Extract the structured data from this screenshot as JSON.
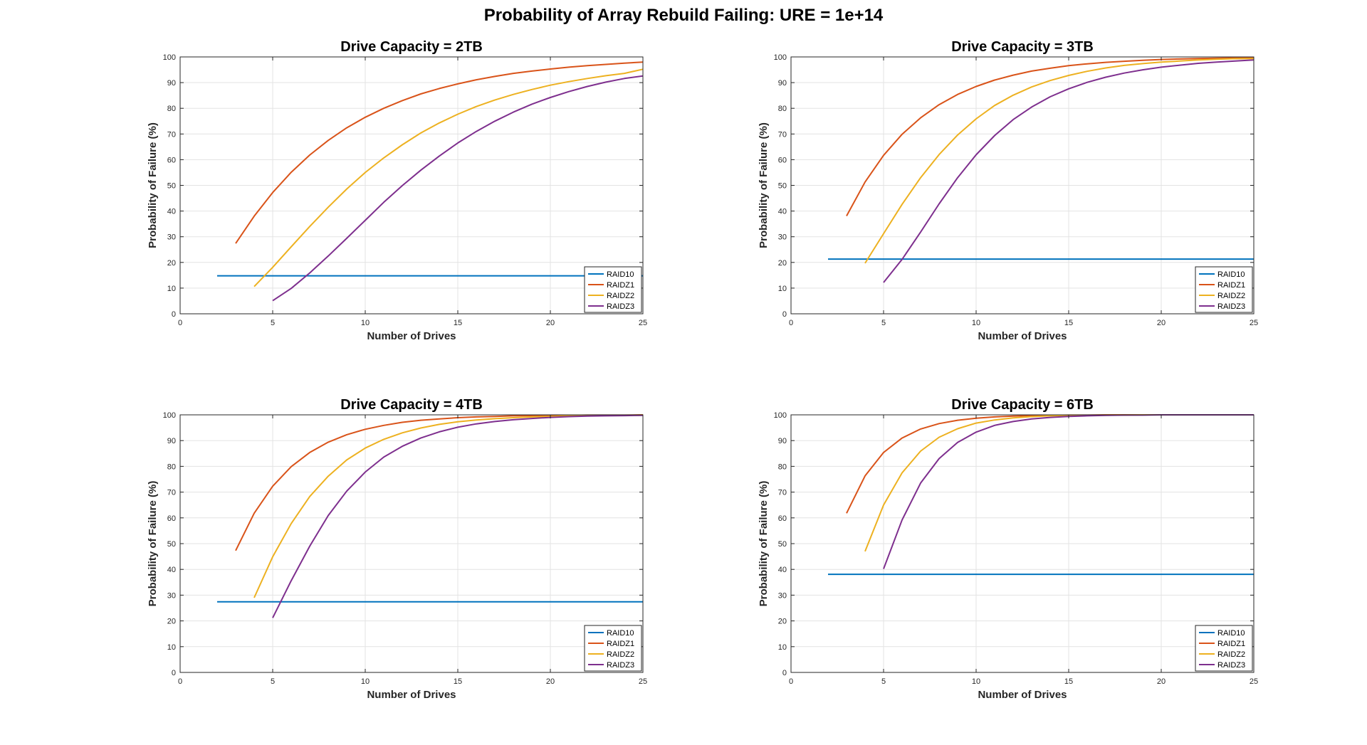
{
  "figure": {
    "title": "Probability of Array Rebuild Failing: URE = 1e+14"
  },
  "colors": {
    "RAID10": "#0072BD",
    "RAIDZ1": "#D95319",
    "RAIDZ2": "#EDB120",
    "RAIDZ3": "#7E2F8E",
    "grid": "#e3e3e3",
    "axis": "#262626"
  },
  "chart_data": [
    {
      "type": "line",
      "title": "Drive Capacity = 2TB",
      "xlabel": "Number of Drives",
      "ylabel": "Probability of Failure (%)",
      "xlim": [
        0,
        25
      ],
      "ylim": [
        0,
        100
      ],
      "xticks": [
        "0",
        "5",
        "10",
        "15",
        "20",
        "25"
      ],
      "yticks": [
        "0",
        "10",
        "20",
        "30",
        "40",
        "50",
        "60",
        "70",
        "80",
        "90",
        "100"
      ],
      "grid": true,
      "legend_position": "bottom-right",
      "series": [
        {
          "name": "RAID10",
          "x": [
            2,
            25
          ],
          "y": [
            14.8,
            14.8
          ]
        },
        {
          "name": "RAIDZ1",
          "x": [
            3,
            4,
            5,
            6,
            7,
            8,
            9,
            10,
            11,
            12,
            13,
            14,
            15,
            16,
            17,
            18,
            19,
            20,
            21,
            22,
            23,
            24,
            25
          ],
          "y": [
            27.4,
            38.0,
            47.2,
            55.1,
            61.8,
            67.5,
            72.4,
            76.5,
            80.0,
            83.0,
            85.6,
            87.7,
            89.5,
            91.1,
            92.4,
            93.6,
            94.5,
            95.3,
            96.0,
            96.6,
            97.1,
            97.6,
            98.0
          ]
        },
        {
          "name": "RAIDZ2",
          "x": [
            4,
            5,
            6,
            7,
            8,
            9,
            10,
            11,
            12,
            13,
            14,
            15,
            16,
            17,
            18,
            19,
            20,
            21,
            22,
            23,
            24,
            25
          ],
          "y": [
            10.6,
            18.1,
            26.1,
            34.0,
            41.5,
            48.6,
            55.0,
            60.7,
            65.8,
            70.4,
            74.3,
            77.7,
            80.7,
            83.2,
            85.4,
            87.3,
            89.0,
            90.4,
            91.6,
            92.7,
            93.6,
            95.2
          ]
        },
        {
          "name": "RAIDZ3",
          "x": [
            5,
            6,
            7,
            8,
            9,
            10,
            11,
            12,
            13,
            14,
            15,
            16,
            17,
            18,
            19,
            20,
            21,
            22,
            23,
            24,
            25
          ],
          "y": [
            5.1,
            9.9,
            15.9,
            22.5,
            29.4,
            36.4,
            43.4,
            49.9,
            55.9,
            61.4,
            66.5,
            71.0,
            75.0,
            78.5,
            81.6,
            84.2,
            86.5,
            88.5,
            90.2,
            91.6,
            92.6
          ]
        }
      ]
    },
    {
      "type": "line",
      "title": "Drive Capacity = 3TB",
      "xlabel": "Number of Drives",
      "ylabel": "Probability of Failure (%)",
      "xlim": [
        0,
        25
      ],
      "ylim": [
        0,
        100
      ],
      "xticks": [
        "0",
        "5",
        "10",
        "15",
        "20",
        "25"
      ],
      "yticks": [
        "0",
        "10",
        "20",
        "30",
        "40",
        "50",
        "60",
        "70",
        "80",
        "90",
        "100"
      ],
      "grid": true,
      "legend_position": "bottom-right",
      "series": [
        {
          "name": "RAID10",
          "x": [
            2,
            25
          ],
          "y": [
            21.3,
            21.3
          ]
        },
        {
          "name": "RAIDZ1",
          "x": [
            3,
            4,
            5,
            6,
            7,
            8,
            9,
            10,
            11,
            12,
            13,
            14,
            15,
            16,
            17,
            18,
            19,
            20,
            21,
            22,
            23,
            24,
            25
          ],
          "y": [
            38.1,
            51.3,
            61.7,
            69.9,
            76.3,
            81.4,
            85.4,
            88.5,
            91.0,
            92.9,
            94.5,
            95.6,
            96.6,
            97.3,
            97.9,
            98.3,
            98.7,
            99.0,
            99.2,
            99.4,
            99.5,
            99.6,
            99.7
          ]
        },
        {
          "name": "RAIDZ2",
          "x": [
            4,
            5,
            6,
            7,
            8,
            9,
            10,
            11,
            12,
            13,
            14,
            15,
            16,
            17,
            18,
            19,
            20,
            21,
            22,
            23,
            24,
            25
          ],
          "y": [
            19.7,
            31.2,
            42.6,
            53.0,
            62.0,
            69.6,
            75.9,
            81.1,
            85.1,
            88.3,
            90.8,
            92.8,
            94.4,
            95.7,
            96.7,
            97.4,
            98.0,
            98.4,
            98.8,
            99.1,
            99.3,
            99.4
          ]
        },
        {
          "name": "RAIDZ3",
          "x": [
            5,
            6,
            7,
            8,
            9,
            10,
            11,
            12,
            13,
            14,
            15,
            16,
            17,
            18,
            19,
            20,
            21,
            22,
            23,
            24,
            25
          ],
          "y": [
            12.2,
            21.2,
            31.8,
            42.8,
            53.0,
            61.9,
            69.4,
            75.6,
            80.5,
            84.5,
            87.6,
            90.1,
            92.1,
            93.7,
            95.0,
            96.0,
            96.8,
            97.5,
            98.0,
            98.4,
            98.8
          ]
        }
      ]
    },
    {
      "type": "line",
      "title": "Drive Capacity = 4TB",
      "xlabel": "Number of Drives",
      "ylabel": "Probability of Failure (%)",
      "xlim": [
        0,
        25
      ],
      "ylim": [
        0,
        100
      ],
      "xticks": [
        "0",
        "5",
        "10",
        "15",
        "20",
        "25"
      ],
      "yticks": [
        "0",
        "10",
        "20",
        "30",
        "40",
        "50",
        "60",
        "70",
        "80",
        "90",
        "100"
      ],
      "grid": true,
      "legend_position": "bottom-right",
      "series": [
        {
          "name": "RAID10",
          "x": [
            2,
            25
          ],
          "y": [
            27.4,
            27.4
          ]
        },
        {
          "name": "RAIDZ1",
          "x": [
            3,
            4,
            5,
            6,
            7,
            8,
            9,
            10,
            11,
            12,
            13,
            14,
            15,
            16,
            17,
            18,
            19,
            20,
            21,
            22,
            23,
            24,
            25
          ],
          "y": [
            47.3,
            61.8,
            72.3,
            79.9,
            85.4,
            89.4,
            92.3,
            94.4,
            95.9,
            97.1,
            97.9,
            98.4,
            98.9,
            99.2,
            99.4,
            99.6,
            99.7,
            99.8,
            99.8,
            99.9,
            99.9,
            99.9,
            100.0
          ]
        },
        {
          "name": "RAIDZ2",
          "x": [
            4,
            5,
            6,
            7,
            8,
            9,
            10,
            11,
            12,
            13,
            14,
            15,
            16,
            17,
            18,
            19,
            20,
            21,
            22,
            23,
            24,
            25
          ],
          "y": [
            29.0,
            44.9,
            57.8,
            68.3,
            76.2,
            82.5,
            87.1,
            90.5,
            93.0,
            94.9,
            96.3,
            97.3,
            98.0,
            98.5,
            98.9,
            99.2,
            99.4,
            99.6,
            99.7,
            99.8,
            99.8,
            99.9
          ]
        },
        {
          "name": "RAIDZ3",
          "x": [
            5,
            6,
            7,
            8,
            9,
            10,
            11,
            12,
            13,
            14,
            15,
            16,
            17,
            18,
            19,
            20,
            21,
            22,
            23,
            24,
            25
          ],
          "y": [
            21.2,
            35.6,
            49.0,
            60.9,
            70.4,
            77.8,
            83.6,
            87.8,
            91.0,
            93.4,
            95.2,
            96.5,
            97.4,
            98.1,
            98.6,
            99.0,
            99.3,
            99.5,
            99.6,
            99.7,
            99.8
          ]
        }
      ]
    },
    {
      "type": "line",
      "title": "Drive Capacity = 6TB",
      "xlabel": "Number of Drives",
      "ylabel": "Probability of Failure (%)",
      "xlim": [
        0,
        25
      ],
      "ylim": [
        0,
        100
      ],
      "xticks": [
        "0",
        "5",
        "10",
        "15",
        "20",
        "25"
      ],
      "yticks": [
        "0",
        "10",
        "20",
        "30",
        "40",
        "50",
        "60",
        "70",
        "80",
        "90",
        "100"
      ],
      "grid": true,
      "legend_position": "bottom-right",
      "series": [
        {
          "name": "RAID10",
          "x": [
            2,
            25
          ],
          "y": [
            38.1,
            38.1
          ]
        },
        {
          "name": "RAIDZ1",
          "x": [
            3,
            4,
            5,
            6,
            7,
            8,
            9,
            10,
            11,
            12,
            13,
            14,
            15,
            16,
            17,
            18,
            19,
            20,
            21,
            22,
            23,
            24,
            25
          ],
          "y": [
            61.8,
            76.3,
            85.4,
            91.0,
            94.5,
            96.6,
            97.9,
            98.7,
            99.2,
            99.5,
            99.7,
            99.8,
            99.9,
            99.9,
            100.0,
            100.0,
            100.0,
            100.0,
            100.0,
            100.0,
            100.0,
            100.0,
            100.0
          ]
        },
        {
          "name": "RAIDZ2",
          "x": [
            4,
            5,
            6,
            7,
            8,
            9,
            10,
            11,
            12,
            13,
            14,
            15,
            16,
            17,
            18,
            19,
            20,
            21,
            22,
            23,
            24,
            25
          ],
          "y": [
            47.0,
            65.0,
            77.5,
            85.9,
            91.3,
            94.6,
            96.8,
            98.0,
            98.8,
            99.3,
            99.6,
            99.7,
            99.8,
            99.9,
            99.9,
            100.0,
            100.0,
            100.0,
            100.0,
            100.0,
            100.0,
            100.0
          ]
        },
        {
          "name": "RAIDZ3",
          "x": [
            5,
            6,
            7,
            8,
            9,
            10,
            11,
            12,
            13,
            14,
            15,
            16,
            17,
            18,
            19,
            20,
            21,
            22,
            23,
            24,
            25
          ],
          "y": [
            40.2,
            59.2,
            73.5,
            83.0,
            89.3,
            93.3,
            95.9,
            97.4,
            98.4,
            99.0,
            99.4,
            99.6,
            99.8,
            99.9,
            99.9,
            100.0,
            100.0,
            100.0,
            100.0,
            100.0,
            100.0
          ]
        }
      ]
    }
  ]
}
